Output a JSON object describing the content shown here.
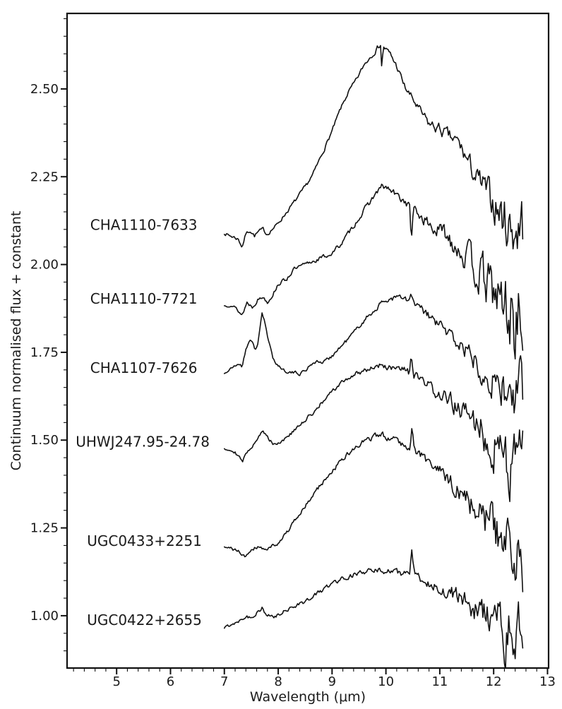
{
  "figure": {
    "background": "#ffffff",
    "line_color": "#111111",
    "text_color": "#1a1a1a"
  },
  "chart_data": {
    "type": "line",
    "title": "",
    "xlabel": "Wavelength (μm)",
    "ylabel": "Continuum normalised flux + constant",
    "xlim": [
      4.08,
      13.02
    ],
    "ylim": [
      0.851,
      2.715
    ],
    "grid": false,
    "legend_position": "none",
    "xticks": [
      5,
      6,
      7,
      8,
      9,
      10,
      11,
      12,
      13
    ],
    "xtick_labels": [
      "5",
      "6",
      "7",
      "8",
      "9",
      "10",
      "11",
      "12",
      "13"
    ],
    "yticks": [
      1.0,
      1.25,
      1.5,
      1.75,
      2.0,
      2.25,
      2.5
    ],
    "ytick_labels": [
      "1.00",
      "1.25",
      "1.50",
      "1.75",
      "2.00",
      "2.25",
      "2.50"
    ],
    "x_minor_step": 0.2,
    "y_minor_step": 0.05,
    "sample_step": 0.02,
    "series": [
      {
        "name": "CHA1110-7633",
        "label": {
          "x": 4.51,
          "y": 2.113
        },
        "seed": 7,
        "anchors": [
          [
            7.0,
            2.09
          ],
          [
            7.08,
            2.083
          ],
          [
            7.18,
            2.078
          ],
          [
            7.26,
            2.072
          ],
          [
            7.33,
            2.05
          ],
          [
            7.4,
            2.088
          ],
          [
            7.48,
            2.097
          ],
          [
            7.56,
            2.082
          ],
          [
            7.64,
            2.094
          ],
          [
            7.72,
            2.1
          ],
          [
            7.79,
            2.086
          ],
          [
            7.87,
            2.098
          ],
          [
            7.97,
            2.112
          ],
          [
            8.1,
            2.138
          ],
          [
            8.3,
            2.178
          ],
          [
            8.5,
            2.22
          ],
          [
            8.65,
            2.258
          ],
          [
            8.8,
            2.31
          ],
          [
            9.0,
            2.38
          ],
          [
            9.15,
            2.44
          ],
          [
            9.3,
            2.49
          ],
          [
            9.45,
            2.525
          ],
          [
            9.6,
            2.57
          ],
          [
            9.75,
            2.6
          ],
          [
            9.85,
            2.618
          ],
          [
            9.9,
            2.628
          ],
          [
            9.92,
            2.568
          ],
          [
            9.96,
            2.62
          ],
          [
            10.08,
            2.598
          ],
          [
            10.2,
            2.565
          ],
          [
            10.35,
            2.505
          ],
          [
            10.5,
            2.47
          ],
          [
            10.65,
            2.432
          ],
          [
            10.8,
            2.4
          ],
          [
            11.0,
            2.385
          ],
          [
            11.2,
            2.36
          ],
          [
            11.35,
            2.345
          ],
          [
            11.5,
            2.3
          ],
          [
            11.7,
            2.24
          ],
          [
            11.85,
            2.21
          ],
          [
            12.0,
            2.175
          ],
          [
            12.15,
            2.14
          ],
          [
            12.3,
            2.11
          ],
          [
            12.45,
            2.1
          ],
          [
            12.55,
            2.12
          ]
        ],
        "noise": [
          [
            7.0,
            0.005
          ],
          [
            9.5,
            0.006
          ],
          [
            10.4,
            0.011
          ],
          [
            11.0,
            0.017
          ],
          [
            11.5,
            0.026
          ],
          [
            11.9,
            0.045
          ],
          [
            12.15,
            0.07
          ],
          [
            12.55,
            0.1
          ]
        ]
      },
      {
        "name": "CHA1110-7721",
        "label": {
          "x": 4.51,
          "y": 1.903
        },
        "seed": 13,
        "anchors": [
          [
            7.0,
            1.882
          ],
          [
            7.12,
            1.888
          ],
          [
            7.22,
            1.874
          ],
          [
            7.33,
            1.856
          ],
          [
            7.42,
            1.892
          ],
          [
            7.52,
            1.88
          ],
          [
            7.62,
            1.9
          ],
          [
            7.72,
            1.908
          ],
          [
            7.8,
            1.894
          ],
          [
            7.9,
            1.915
          ],
          [
            8.0,
            1.945
          ],
          [
            8.15,
            1.958
          ],
          [
            8.28,
            1.985
          ],
          [
            8.45,
            1.996
          ],
          [
            8.65,
            2.01
          ],
          [
            8.85,
            2.022
          ],
          [
            9.0,
            2.032
          ],
          [
            9.2,
            2.065
          ],
          [
            9.4,
            2.11
          ],
          [
            9.6,
            2.155
          ],
          [
            9.8,
            2.2
          ],
          [
            9.93,
            2.222
          ],
          [
            10.05,
            2.215
          ],
          [
            10.2,
            2.196
          ],
          [
            10.35,
            2.18
          ],
          [
            10.44,
            2.165
          ],
          [
            10.47,
            2.07
          ],
          [
            10.51,
            2.155
          ],
          [
            10.7,
            2.13
          ],
          [
            10.9,
            2.1
          ],
          [
            11.1,
            2.088
          ],
          [
            11.3,
            2.06
          ],
          [
            11.5,
            2.02
          ],
          [
            11.7,
            1.98
          ],
          [
            11.9,
            1.94
          ],
          [
            12.1,
            1.9
          ],
          [
            12.3,
            1.86
          ],
          [
            12.55,
            1.83
          ]
        ],
        "noise": [
          [
            7.0,
            0.005
          ],
          [
            9.5,
            0.007
          ],
          [
            10.5,
            0.012
          ],
          [
            11.0,
            0.024
          ],
          [
            11.5,
            0.042
          ],
          [
            11.9,
            0.068
          ],
          [
            12.2,
            0.105
          ],
          [
            12.55,
            0.135
          ]
        ]
      },
      {
        "name": "CHA1107-7626",
        "label": {
          "x": 4.51,
          "y": 1.706
        },
        "seed": 21,
        "anchors": [
          [
            7.0,
            1.69
          ],
          [
            7.1,
            1.7
          ],
          [
            7.2,
            1.712
          ],
          [
            7.28,
            1.718
          ],
          [
            7.33,
            1.708
          ],
          [
            7.4,
            1.76
          ],
          [
            7.48,
            1.788
          ],
          [
            7.53,
            1.775
          ],
          [
            7.57,
            1.752
          ],
          [
            7.62,
            1.775
          ],
          [
            7.66,
            1.82
          ],
          [
            7.7,
            1.863
          ],
          [
            7.75,
            1.835
          ],
          [
            7.82,
            1.78
          ],
          [
            7.9,
            1.735
          ],
          [
            8.0,
            1.712
          ],
          [
            8.1,
            1.7
          ],
          [
            8.25,
            1.692
          ],
          [
            8.4,
            1.69
          ],
          [
            8.52,
            1.7
          ],
          [
            8.6,
            1.716
          ],
          [
            8.7,
            1.725
          ],
          [
            8.8,
            1.72
          ],
          [
            8.9,
            1.728
          ],
          [
            9.05,
            1.748
          ],
          [
            9.25,
            1.78
          ],
          [
            9.45,
            1.815
          ],
          [
            9.65,
            1.85
          ],
          [
            9.85,
            1.88
          ],
          [
            10.0,
            1.898
          ],
          [
            10.15,
            1.906
          ],
          [
            10.3,
            1.905
          ],
          [
            10.43,
            1.893
          ],
          [
            10.47,
            1.915
          ],
          [
            10.52,
            1.888
          ],
          [
            10.65,
            1.872
          ],
          [
            10.85,
            1.845
          ],
          [
            11.05,
            1.82
          ],
          [
            11.25,
            1.79
          ],
          [
            11.45,
            1.762
          ],
          [
            11.65,
            1.73
          ],
          [
            11.85,
            1.698
          ],
          [
            12.05,
            1.66
          ],
          [
            12.25,
            1.63
          ],
          [
            12.4,
            1.61
          ],
          [
            12.55,
            1.65
          ]
        ],
        "noise": [
          [
            7.0,
            0.004
          ],
          [
            9.5,
            0.006
          ],
          [
            10.5,
            0.01
          ],
          [
            11.0,
            0.017
          ],
          [
            11.5,
            0.028
          ],
          [
            12.0,
            0.048
          ],
          [
            12.3,
            0.072
          ],
          [
            12.55,
            0.09
          ]
        ]
      },
      {
        "name": "UHWJ247.95-24.78",
        "label": {
          "x": 4.24,
          "y": 1.495
        },
        "seed": 29,
        "anchors": [
          [
            7.0,
            1.478
          ],
          [
            7.1,
            1.473
          ],
          [
            7.2,
            1.468
          ],
          [
            7.33,
            1.438
          ],
          [
            7.45,
            1.472
          ],
          [
            7.55,
            1.492
          ],
          [
            7.65,
            1.515
          ],
          [
            7.72,
            1.523
          ],
          [
            7.8,
            1.508
          ],
          [
            7.92,
            1.49
          ],
          [
            8.05,
            1.496
          ],
          [
            8.25,
            1.52
          ],
          [
            8.45,
            1.548
          ],
          [
            8.65,
            1.58
          ],
          [
            8.85,
            1.612
          ],
          [
            9.05,
            1.645
          ],
          [
            9.25,
            1.672
          ],
          [
            9.45,
            1.69
          ],
          [
            9.65,
            1.702
          ],
          [
            9.85,
            1.712
          ],
          [
            10.0,
            1.71
          ],
          [
            10.15,
            1.7
          ],
          [
            10.3,
            1.7
          ],
          [
            10.43,
            1.69
          ],
          [
            10.47,
            1.742
          ],
          [
            10.52,
            1.685
          ],
          [
            10.7,
            1.662
          ],
          [
            10.9,
            1.64
          ],
          [
            11.1,
            1.618
          ],
          [
            11.3,
            1.598
          ],
          [
            11.5,
            1.572
          ],
          [
            11.7,
            1.542
          ],
          [
            11.9,
            1.505
          ],
          [
            12.1,
            1.478
          ],
          [
            12.3,
            1.45
          ],
          [
            12.55,
            1.43
          ]
        ],
        "noise": [
          [
            7.0,
            0.005
          ],
          [
            9.5,
            0.007
          ],
          [
            10.5,
            0.012
          ],
          [
            11.0,
            0.019
          ],
          [
            11.5,
            0.034
          ],
          [
            11.9,
            0.058
          ],
          [
            12.2,
            0.085
          ],
          [
            12.55,
            0.1
          ]
        ]
      },
      {
        "name": "UGC0433+2251",
        "label": {
          "x": 4.45,
          "y": 1.213
        },
        "seed": 41,
        "anchors": [
          [
            7.0,
            1.193
          ],
          [
            7.15,
            1.19
          ],
          [
            7.25,
            1.184
          ],
          [
            7.38,
            1.168
          ],
          [
            7.5,
            1.19
          ],
          [
            7.62,
            1.198
          ],
          [
            7.75,
            1.188
          ],
          [
            7.88,
            1.198
          ],
          [
            8.0,
            1.21
          ],
          [
            8.15,
            1.235
          ],
          [
            8.35,
            1.278
          ],
          [
            8.55,
            1.322
          ],
          [
            8.75,
            1.365
          ],
          [
            8.95,
            1.402
          ],
          [
            9.15,
            1.438
          ],
          [
            9.35,
            1.468
          ],
          [
            9.55,
            1.492
          ],
          [
            9.75,
            1.507
          ],
          [
            9.9,
            1.515
          ],
          [
            10.05,
            1.51
          ],
          [
            10.2,
            1.5
          ],
          [
            10.35,
            1.49
          ],
          [
            10.44,
            1.48
          ],
          [
            10.48,
            1.53
          ],
          [
            10.53,
            1.474
          ],
          [
            10.7,
            1.452
          ],
          [
            10.9,
            1.422
          ],
          [
            11.1,
            1.392
          ],
          [
            11.3,
            1.362
          ],
          [
            11.5,
            1.332
          ],
          [
            11.7,
            1.302
          ],
          [
            11.9,
            1.268
          ],
          [
            12.1,
            1.23
          ],
          [
            12.3,
            1.192
          ],
          [
            12.55,
            1.16
          ]
        ],
        "noise": [
          [
            7.0,
            0.005
          ],
          [
            9.5,
            0.007
          ],
          [
            10.5,
            0.012
          ],
          [
            11.2,
            0.024
          ],
          [
            11.7,
            0.044
          ],
          [
            12.1,
            0.07
          ],
          [
            12.55,
            0.1
          ]
        ]
      },
      {
        "name": "UGC0422+2655",
        "label": {
          "x": 4.45,
          "y": 0.988
        },
        "seed": 55,
        "anchors": [
          [
            7.0,
            0.965
          ],
          [
            7.12,
            0.975
          ],
          [
            7.25,
            0.985
          ],
          [
            7.4,
            1.0
          ],
          [
            7.5,
            0.993
          ],
          [
            7.6,
            1.01
          ],
          [
            7.7,
            1.022
          ],
          [
            7.78,
            1.0
          ],
          [
            7.92,
            0.995
          ],
          [
            8.05,
            1.005
          ],
          [
            8.2,
            1.022
          ],
          [
            8.35,
            1.032
          ],
          [
            8.5,
            1.04
          ],
          [
            8.7,
            1.06
          ],
          [
            8.9,
            1.082
          ],
          [
            9.1,
            1.1
          ],
          [
            9.3,
            1.113
          ],
          [
            9.5,
            1.12
          ],
          [
            9.7,
            1.126
          ],
          [
            9.9,
            1.13
          ],
          [
            10.1,
            1.126
          ],
          [
            10.28,
            1.12
          ],
          [
            10.4,
            1.128
          ],
          [
            10.44,
            1.122
          ],
          [
            10.48,
            1.178
          ],
          [
            10.53,
            1.115
          ],
          [
            10.7,
            1.098
          ],
          [
            10.9,
            1.088
          ],
          [
            11.1,
            1.072
          ],
          [
            11.3,
            1.055
          ],
          [
            11.5,
            1.038
          ],
          [
            11.7,
            1.018
          ],
          [
            11.9,
            0.995
          ],
          [
            12.1,
            0.972
          ],
          [
            12.3,
            0.935
          ],
          [
            12.45,
            0.92
          ],
          [
            12.55,
            0.95
          ]
        ],
        "noise": [
          [
            7.0,
            0.005
          ],
          [
            9.5,
            0.007
          ],
          [
            10.5,
            0.01
          ],
          [
            11.0,
            0.017
          ],
          [
            11.5,
            0.03
          ],
          [
            11.9,
            0.052
          ],
          [
            12.2,
            0.082
          ],
          [
            12.55,
            0.102
          ]
        ]
      }
    ]
  }
}
